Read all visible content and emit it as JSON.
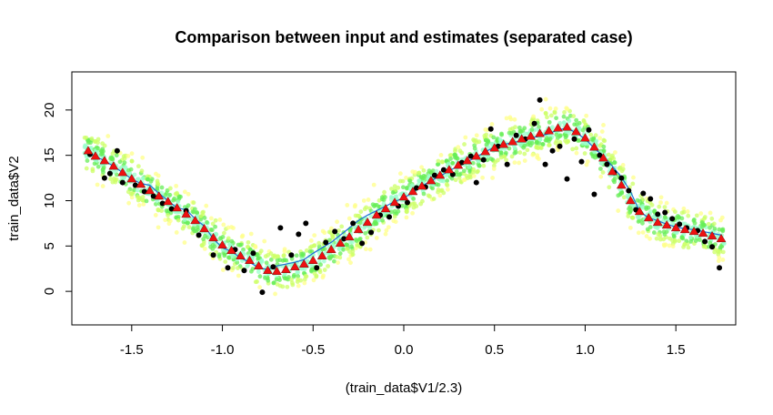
{
  "chart_data": {
    "type": "scatter",
    "title": "Comparison between input and estimates (separated case)",
    "xlabel": "(train_data$V1/2.3)",
    "ylabel": "train_data$V2",
    "xlim": [
      -1.83,
      1.83
    ],
    "ylim": [
      -3.7,
      24.2
    ],
    "xticks": [
      -1.5,
      -1.0,
      -0.5,
      0.0,
      0.5,
      1.0,
      1.5
    ],
    "xtick_labels": [
      "-1.5",
      "-1.0",
      "-0.5",
      "0.0",
      "0.5",
      "1.0",
      "1.5"
    ],
    "yticks": [
      0,
      5,
      10,
      15,
      20
    ],
    "ytick_labels": [
      "0",
      "5",
      "10",
      "15",
      "20"
    ],
    "grid": false,
    "series": [
      {
        "kind": "line",
        "color": "#1f6fd6",
        "x": [
          -1.74,
          -1.7,
          -1.65,
          -1.6,
          -1.55,
          -1.5,
          -1.45,
          -1.4,
          -1.35,
          -1.3,
          -1.25,
          -1.2,
          -1.15,
          -1.1,
          -1.05,
          -1.0,
          -0.95,
          -0.9,
          -0.85,
          -0.8,
          -0.75,
          -0.7,
          -0.65,
          -0.6,
          -0.55,
          -0.5,
          -0.45,
          -0.4,
          -0.35,
          -0.3,
          -0.25,
          -0.2,
          -0.15,
          -0.1,
          -0.05,
          0.0,
          0.05,
          0.1,
          0.15,
          0.2,
          0.25,
          0.3,
          0.35,
          0.4,
          0.45,
          0.5,
          0.55,
          0.6,
          0.65,
          0.7,
          0.75,
          0.8,
          0.85,
          0.9,
          0.95,
          1.0,
          1.05,
          1.1,
          1.15,
          1.2,
          1.25,
          1.3,
          1.35,
          1.4,
          1.45,
          1.5,
          1.55,
          1.6,
          1.65,
          1.7,
          1.75
        ],
        "y": [
          15.4,
          14.9,
          14.4,
          13.8,
          13.1,
          12.4,
          11.9,
          11.7,
          10.8,
          10.0,
          9.2,
          9.0,
          8.0,
          7.2,
          5.8,
          4.8,
          4.4,
          3.7,
          3.2,
          2.6,
          2.4,
          2.8,
          3.0,
          3.2,
          3.5,
          4.2,
          4.8,
          5.4,
          6.2,
          7.0,
          7.8,
          8.4,
          8.9,
          9.4,
          9.9,
          10.3,
          10.9,
          11.6,
          12.2,
          12.7,
          13.3,
          13.8,
          14.3,
          14.8,
          15.4,
          15.9,
          16.2,
          16.4,
          16.6,
          16.9,
          17.1,
          17.4,
          17.8,
          18.0,
          17.5,
          16.8,
          15.8,
          14.9,
          13.8,
          12.6,
          11.0,
          8.8,
          8.1,
          7.8,
          7.4,
          7.1,
          6.9,
          6.8,
          6.6,
          6.4,
          6.2
        ]
      },
      {
        "kind": "points",
        "marker": "triangle",
        "color": "#ee1111",
        "x": [
          -1.74,
          -1.7,
          -1.65,
          -1.6,
          -1.55,
          -1.5,
          -1.45,
          -1.4,
          -1.35,
          -1.3,
          -1.25,
          -1.2,
          -1.15,
          -1.1,
          -1.05,
          -1.0,
          -0.95,
          -0.9,
          -0.85,
          -0.8,
          -0.75,
          -0.7,
          -0.65,
          -0.6,
          -0.55,
          -0.5,
          -0.45,
          -0.4,
          -0.35,
          -0.3,
          -0.25,
          -0.2,
          -0.15,
          -0.1,
          -0.05,
          0.0,
          0.05,
          0.1,
          0.15,
          0.2,
          0.25,
          0.3,
          0.35,
          0.4,
          0.45,
          0.5,
          0.55,
          0.6,
          0.65,
          0.7,
          0.75,
          0.8,
          0.85,
          0.9,
          0.95,
          1.0,
          1.05,
          1.1,
          1.15,
          1.2,
          1.25,
          1.3,
          1.35,
          1.4,
          1.45,
          1.5,
          1.55,
          1.6,
          1.65,
          1.7,
          1.75
        ],
        "y": [
          15.5,
          14.9,
          14.4,
          13.8,
          13.1,
          12.4,
          11.8,
          11.1,
          10.5,
          9.9,
          9.2,
          8.5,
          7.8,
          6.9,
          5.9,
          5.1,
          4.5,
          3.9,
          3.4,
          2.8,
          2.3,
          2.2,
          2.4,
          2.7,
          3.0,
          3.4,
          3.9,
          4.6,
          5.3,
          6.0,
          6.8,
          7.6,
          8.4,
          9.1,
          9.8,
          10.4,
          11.0,
          11.6,
          12.2,
          12.8,
          13.4,
          13.9,
          14.4,
          14.9,
          15.4,
          15.8,
          16.2,
          16.5,
          16.8,
          17.1,
          17.4,
          17.7,
          18.0,
          18.1,
          17.6,
          16.9,
          15.9,
          14.7,
          13.2,
          11.7,
          10.0,
          8.8,
          8.1,
          7.6,
          7.3,
          7.0,
          6.8,
          6.6,
          6.4,
          6.1,
          5.8
        ]
      },
      {
        "kind": "points",
        "marker": "dot",
        "color": "#000000",
        "x": [
          -1.73,
          -1.65,
          -1.62,
          -1.58,
          -1.55,
          -1.48,
          -1.43,
          -1.38,
          -1.33,
          -1.28,
          -1.2,
          -1.13,
          -1.05,
          -0.97,
          -0.93,
          -0.88,
          -0.83,
          -0.78,
          -0.72,
          -0.68,
          -0.62,
          -0.58,
          -0.54,
          -0.48,
          -0.43,
          -0.38,
          -0.33,
          -0.28,
          -0.23,
          -0.18,
          -0.13,
          -0.08,
          -0.03,
          0.02,
          0.07,
          0.12,
          0.17,
          0.22,
          0.27,
          0.32,
          0.37,
          0.4,
          0.44,
          0.48,
          0.52,
          0.57,
          0.62,
          0.67,
          0.72,
          0.75,
          0.78,
          0.82,
          0.86,
          0.9,
          0.94,
          0.98,
          1.02,
          1.05,
          1.08,
          1.12,
          1.16,
          1.2,
          1.24,
          1.28,
          1.32,
          1.36,
          1.4,
          1.44,
          1.48,
          1.52,
          1.56,
          1.62,
          1.66,
          1.7,
          1.74
        ],
        "y": [
          15.1,
          12.5,
          13.0,
          15.5,
          12.0,
          11.7,
          11.0,
          10.5,
          9.7,
          9.1,
          8.9,
          6.2,
          4.0,
          2.6,
          4.6,
          2.3,
          4.2,
          -0.1,
          2.7,
          7.0,
          4.0,
          6.3,
          7.5,
          2.6,
          5.4,
          6.6,
          5.8,
          7.5,
          5.3,
          6.5,
          8.4,
          8.2,
          9.4,
          9.8,
          11.4,
          11.5,
          12.8,
          13.4,
          12.9,
          14.2,
          14.9,
          12.0,
          14.5,
          17.9,
          16.0,
          14.0,
          17.2,
          16.8,
          18.5,
          21.1,
          14.0,
          15.5,
          16.0,
          12.4,
          16.8,
          14.3,
          17.8,
          10.7,
          15.0,
          14.0,
          13.1,
          12.5,
          11.1,
          9.0,
          10.8,
          10.2,
          8.5,
          8.7,
          8.0,
          7.4,
          7.0,
          6.7,
          5.5,
          4.9,
          2.6
        ]
      },
      {
        "kind": "cloud",
        "colors": [
          "#ffff88",
          "#ccff66",
          "#66ee55",
          "#99ffcc"
        ],
        "x": [
          -1.74,
          -1.7,
          -1.65,
          -1.6,
          -1.55,
          -1.5,
          -1.45,
          -1.4,
          -1.35,
          -1.3,
          -1.25,
          -1.2,
          -1.15,
          -1.1,
          -1.05,
          -1.0,
          -0.95,
          -0.9,
          -0.85,
          -0.8,
          -0.75,
          -0.7,
          -0.65,
          -0.6,
          -0.55,
          -0.5,
          -0.45,
          -0.4,
          -0.35,
          -0.3,
          -0.25,
          -0.2,
          -0.15,
          -0.1,
          -0.05,
          0.0,
          0.05,
          0.1,
          0.15,
          0.2,
          0.25,
          0.3,
          0.35,
          0.4,
          0.45,
          0.5,
          0.55,
          0.6,
          0.65,
          0.7,
          0.75,
          0.8,
          0.85,
          0.9,
          0.95,
          1.0,
          1.05,
          1.1,
          1.15,
          1.2,
          1.25,
          1.3,
          1.35,
          1.4,
          1.45,
          1.5,
          1.55,
          1.6,
          1.65,
          1.7,
          1.75
        ],
        "y": [
          15.5,
          14.9,
          14.4,
          13.8,
          13.1,
          12.4,
          11.8,
          11.1,
          10.5,
          9.9,
          9.2,
          8.5,
          7.8,
          6.9,
          5.9,
          5.1,
          4.5,
          3.9,
          3.4,
          2.8,
          2.3,
          2.2,
          2.4,
          2.7,
          3.0,
          3.4,
          3.9,
          4.6,
          5.3,
          6.0,
          6.8,
          7.6,
          8.4,
          9.1,
          9.8,
          10.4,
          11.0,
          11.6,
          12.2,
          12.8,
          13.4,
          13.9,
          14.4,
          14.9,
          15.4,
          15.8,
          16.2,
          16.5,
          16.8,
          17.1,
          17.4,
          17.7,
          18.0,
          18.1,
          17.6,
          16.9,
          15.9,
          14.7,
          13.2,
          11.7,
          10.0,
          8.8,
          8.1,
          7.6,
          7.3,
          7.0,
          6.8,
          6.6,
          6.4,
          6.1,
          5.8
        ],
        "spread": 2.2
      }
    ]
  }
}
